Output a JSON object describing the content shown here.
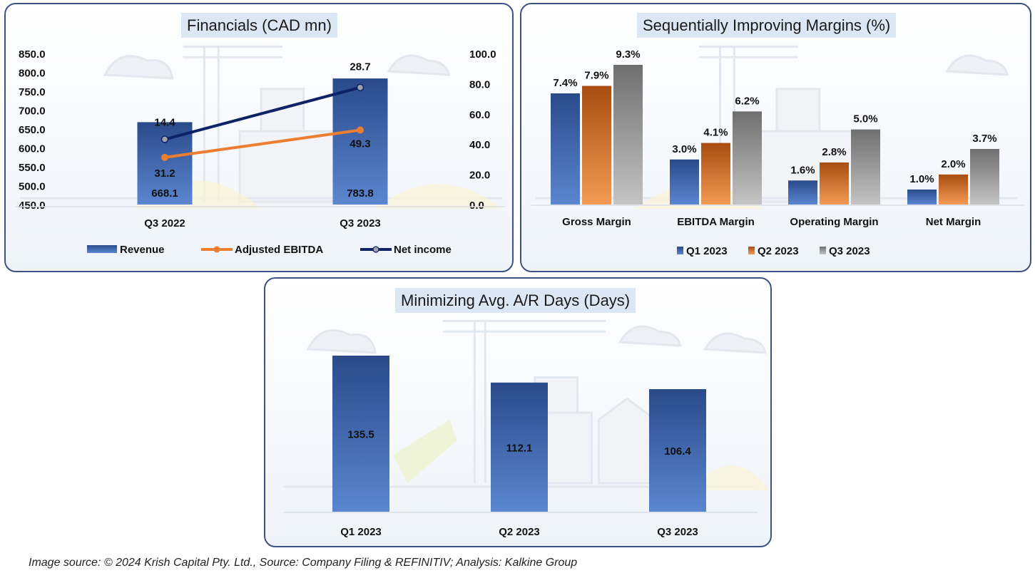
{
  "colors": {
    "revenue": "#2f5597",
    "ebitda": "#ed7d31",
    "net_income": "#0d2366",
    "q1": "#2f5597",
    "q2": "#c55a11",
    "q3": "#7f7f7f",
    "panel_border": "#3d5283",
    "title_bg": "#dbe7f4"
  },
  "chart_data": [
    {
      "id": "financials",
      "type": "bar",
      "title": "Financials (CAD mn)",
      "categories": [
        "Q3 2022",
        "Q3 2023"
      ],
      "series": [
        {
          "name": "Revenue",
          "kind": "bar",
          "axis": "left",
          "values": [
            668.1,
            783.8
          ],
          "labels": [
            "668.1",
            "783.8"
          ]
        },
        {
          "name": "Adjusted EBITDA",
          "kind": "line",
          "axis": "right",
          "values": [
            31.2,
            49.3
          ],
          "labels": [
            "31.2",
            "49.3"
          ]
        },
        {
          "name": "Net income",
          "kind": "line",
          "axis": "right",
          "values": [
            14.4,
            28.7
          ],
          "labels": [
            "14.4",
            "28.7"
          ]
        }
      ],
      "left_axis": {
        "ylim": [
          450,
          850
        ],
        "ticks": [
          "850.0",
          "800.0",
          "750.0",
          "700.0",
          "650.0",
          "600.0",
          "550.0",
          "500.0",
          "450.0"
        ]
      },
      "right_axis": {
        "ylim": [
          0,
          100
        ],
        "ticks": [
          "100.0",
          "80.0",
          "60.0",
          "40.0",
          "20.0",
          "0.0"
        ]
      },
      "legend": [
        "Revenue",
        "Adjusted EBITDA",
        "Net income"
      ],
      "legend_position": "bottom",
      "grid": false
    },
    {
      "id": "margins",
      "type": "bar",
      "title": "Sequentially Improving Margins (%)",
      "categories": [
        "Gross Margin",
        "EBITDA Margin",
        "Operating Margin",
        "Net Margin"
      ],
      "series": [
        {
          "name": "Q1 2023",
          "values": [
            7.4,
            3.0,
            1.6,
            1.0
          ],
          "labels": [
            "7.4%",
            "3.0%",
            "1.6%",
            "1.0%"
          ]
        },
        {
          "name": "Q2 2023",
          "values": [
            7.9,
            4.1,
            2.8,
            2.0
          ],
          "labels": [
            "7.9%",
            "4.1%",
            "2.8%",
            "2.0%"
          ]
        },
        {
          "name": "Q3 2023",
          "values": [
            9.3,
            6.2,
            5.0,
            3.7
          ],
          "labels": [
            "9.3%",
            "6.2%",
            "5.0%",
            "3.7%"
          ]
        }
      ],
      "ylim": [
        0,
        9.3
      ],
      "legend": [
        "Q1 2023",
        "Q2 2023",
        "Q3 2023"
      ],
      "legend_position": "bottom",
      "grid": false
    },
    {
      "id": "ar_days",
      "type": "bar",
      "title": "Minimizing Avg. A/R Days (Days)",
      "categories": [
        "Q1 2023",
        "Q2 2023",
        "Q3 2023"
      ],
      "values": [
        135.5,
        112.1,
        106.4
      ],
      "labels": [
        "135.5",
        "112.1",
        "106.4"
      ],
      "ylim": [
        0,
        135.5
      ],
      "grid": false
    }
  ],
  "footer": {
    "source_text": "Image source: © 2024 Krish Capital Pty. Ltd., Source: Company Filing & REFINITIV; Analysis: Kalkine Group"
  }
}
